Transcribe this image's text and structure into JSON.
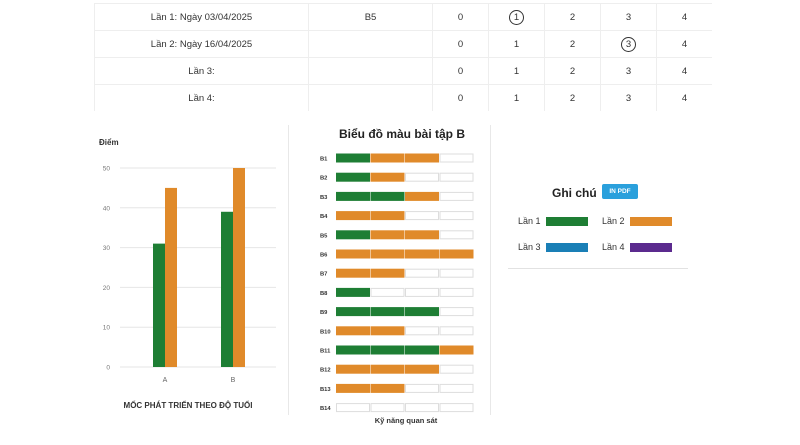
{
  "attempts": [
    {
      "label": "Lần 1: Ngày 03/04/2025",
      "exercise": "B5",
      "scores": [
        "0",
        "1",
        "2",
        "3",
        "4"
      ],
      "selected": 1
    },
    {
      "label": "Lần 2: Ngày 16/04/2025",
      "exercise": "",
      "scores": [
        "0",
        "1",
        "2",
        "3",
        "4"
      ],
      "selected": 3
    },
    {
      "label": "Lần 3:",
      "exercise": "",
      "scores": [
        "0",
        "1",
        "2",
        "3",
        "4"
      ],
      "selected": -1
    },
    {
      "label": "Lần 4:",
      "exercise": "",
      "scores": [
        "0",
        "1",
        "2",
        "3",
        "4"
      ],
      "selected": -1
    }
  ],
  "chart_data": [
    {
      "type": "bar",
      "title": "",
      "ylabel": "Điểm",
      "xlabel": "MỐC PHÁT TRIỂN THEO ĐỘ TUỔI",
      "categories": [
        "A",
        "B"
      ],
      "ylim": [
        0,
        50
      ],
      "yticks": [
        0,
        10,
        20,
        30,
        40,
        50
      ],
      "series": [
        {
          "values": [
            31,
            39
          ],
          "color": "#1e7e34"
        },
        {
          "values": [
            45,
            50
          ],
          "color": "#e08a2a"
        }
      ],
      "grid": true
    },
    {
      "type": "bar",
      "title": "Biểu đồ màu bài tập B",
      "xlabel": "Kỹ năng quan sát",
      "categories": [
        "B1",
        "B2",
        "B3",
        "B4",
        "B5",
        "B6",
        "B7",
        "B8",
        "B9",
        "B10",
        "B11",
        "B12",
        "B13",
        "B14"
      ],
      "segments_per_row": 4,
      "rows": [
        [
          "green",
          "orange",
          "orange",
          "empty"
        ],
        [
          "green",
          "orange",
          "empty",
          "empty"
        ],
        [
          "green",
          "green",
          "orange",
          "empty"
        ],
        [
          "orange",
          "orange",
          "empty",
          "empty"
        ],
        [
          "green",
          "orange",
          "orange",
          "empty"
        ],
        [
          "orange",
          "orange",
          "orange",
          "orange"
        ],
        [
          "orange",
          "orange",
          "empty",
          "empty"
        ],
        [
          "green",
          "empty",
          "empty",
          "empty"
        ],
        [
          "green",
          "green",
          "green",
          "empty"
        ],
        [
          "orange",
          "orange",
          "empty",
          "empty"
        ],
        [
          "green",
          "green",
          "green",
          "orange"
        ],
        [
          "orange",
          "orange",
          "orange",
          "empty"
        ],
        [
          "orange",
          "orange",
          "empty",
          "empty"
        ],
        [
          "empty",
          "empty",
          "empty",
          "empty"
        ]
      ]
    }
  ],
  "legend": {
    "title": "Ghi chú",
    "print_label": "IN PDF",
    "items": [
      {
        "label": "Lần 1",
        "color": "#1e7e34"
      },
      {
        "label": "Lần 2",
        "color": "#e08a2a"
      },
      {
        "label": "Lần 3",
        "color": "#1a7fb6"
      },
      {
        "label": "Lần 4",
        "color": "#5b2a8e"
      }
    ]
  },
  "colors": {
    "green": "#1e7e34",
    "orange": "#e08a2a"
  }
}
